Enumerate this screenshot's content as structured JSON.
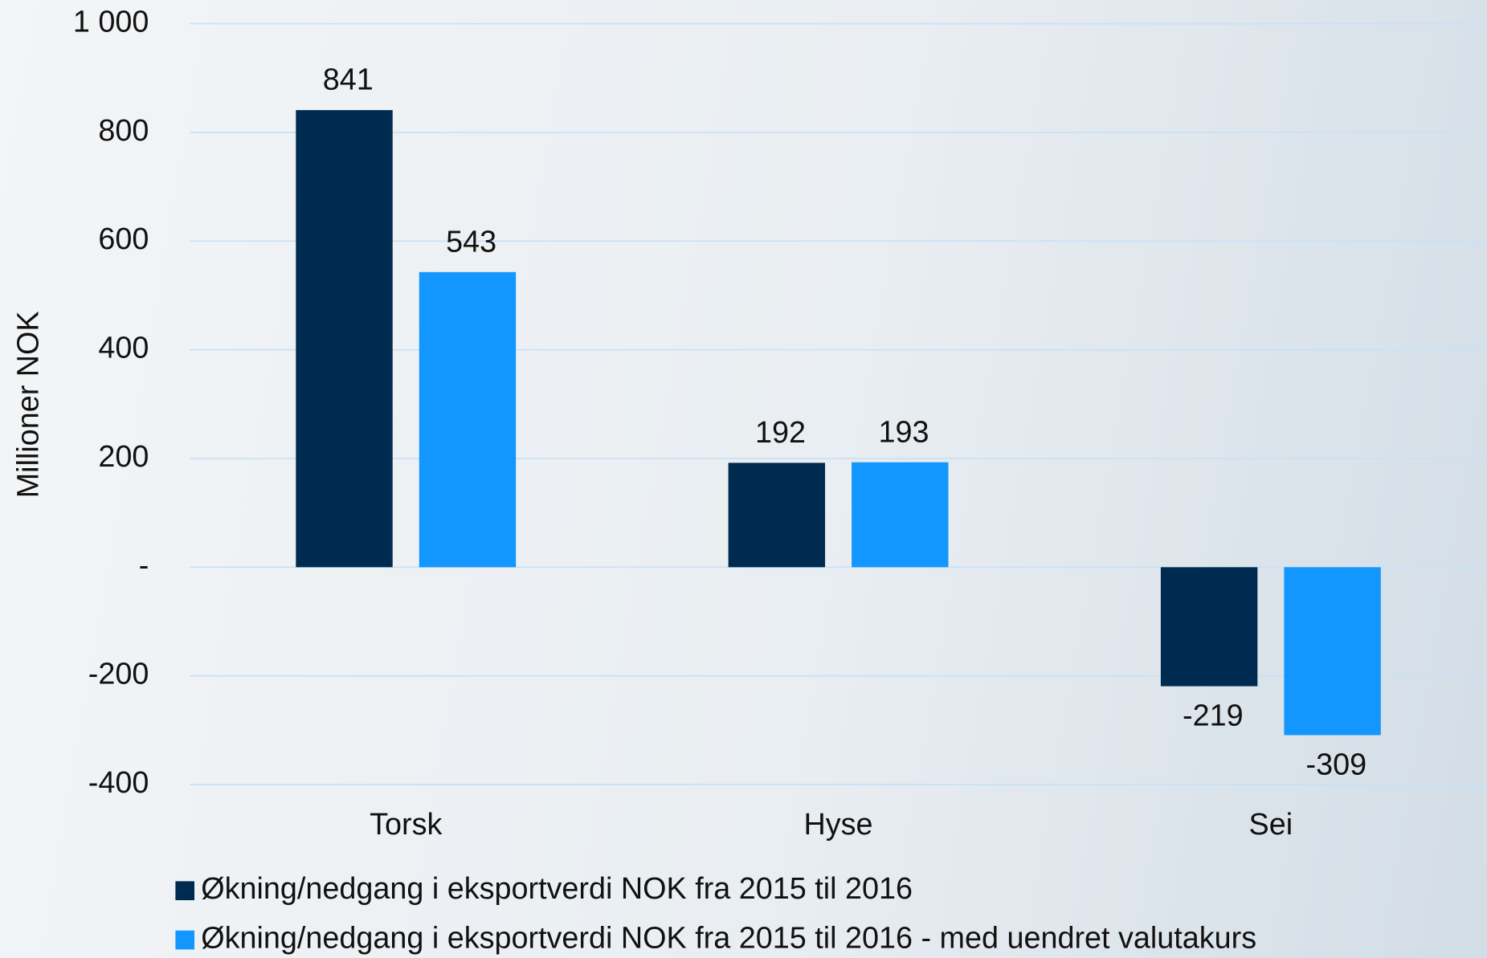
{
  "chart_data": {
    "type": "bar",
    "y_axis_label": "Millioner NOK",
    "categories": [
      "Torsk",
      "Hyse",
      "Sei"
    ],
    "series": [
      {
        "name": "Økning/nedgang i eksportverdi NOK fra 2015 til 2016",
        "color": "#002b50",
        "values": [
          841,
          192,
          -219
        ]
      },
      {
        "name": "Økning/nedgang i eksportverdi NOK fra 2015 til 2016 - med uendret valutakurs",
        "color": "#1396fe",
        "values": [
          543,
          193,
          -309
        ]
      }
    ],
    "ylim": [
      -400,
      1000
    ],
    "yticks": [
      {
        "value": 1000,
        "label": "1 000"
      },
      800,
      600,
      400,
      200,
      {
        "value": 0,
        "label": "-"
      },
      -200,
      -400
    ],
    "grid": true
  }
}
